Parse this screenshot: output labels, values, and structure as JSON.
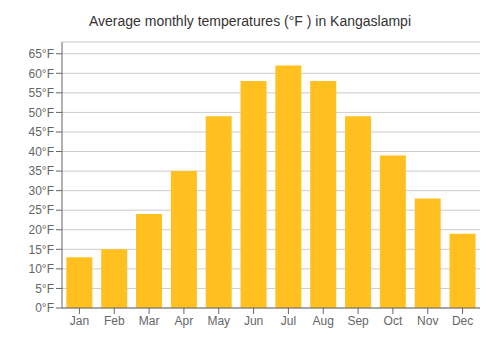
{
  "chart_data": {
    "type": "bar",
    "title": "Average monthly temperatures (°F ) in Kangaslampi",
    "categories": [
      "Jan",
      "Feb",
      "Mar",
      "Apr",
      "May",
      "Jun",
      "Jul",
      "Aug",
      "Sep",
      "Oct",
      "Nov",
      "Dec"
    ],
    "values": [
      13,
      15,
      24,
      35,
      49,
      58,
      62,
      58,
      49,
      39,
      28,
      19
    ],
    "color": "#FFC020",
    "ylim": [
      0,
      68
    ],
    "yticks": [
      {
        "value": 0,
        "label": "0°F"
      },
      {
        "value": 5,
        "label": "5°F"
      },
      {
        "value": 10,
        "label": "10°F"
      },
      {
        "value": 15,
        "label": "15°F"
      },
      {
        "value": 20,
        "label": "20°F"
      },
      {
        "value": 25,
        "label": "25°F"
      },
      {
        "value": 30,
        "label": "30°F"
      },
      {
        "value": 35,
        "label": "35°F"
      },
      {
        "value": 40,
        "label": "40°F"
      },
      {
        "value": 45,
        "label": "45°F"
      },
      {
        "value": 50,
        "label": "50°F"
      },
      {
        "value": 55,
        "label": "55°F"
      },
      {
        "value": 60,
        "label": "60°F"
      },
      {
        "value": 65,
        "label": "65°F"
      }
    ],
    "grid": true
  }
}
